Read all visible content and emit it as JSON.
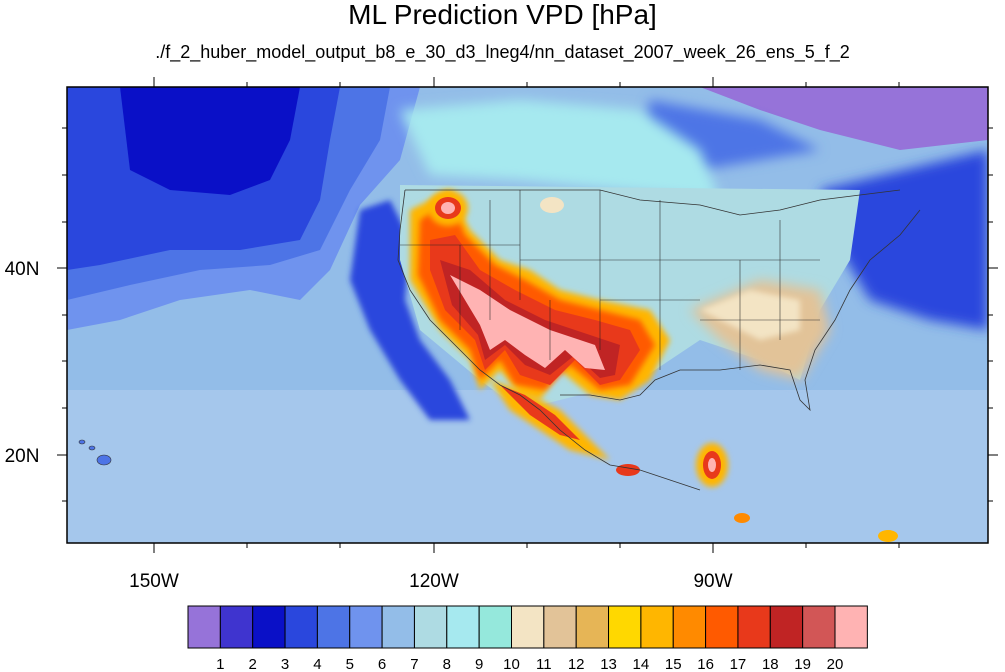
{
  "title": "ML Prediction VPD [hPa]",
  "subtitle": "./f_2_huber_model_output_b8_e_30_d3_lneg4/nn_dataset_2007_week_26_ens_5_f_2",
  "axes": {
    "x_ticks": [
      "150W",
      "120W",
      "90W"
    ],
    "y_ticks": [
      "40N",
      "20N"
    ]
  },
  "colorbar": {
    "labels": [
      "1",
      "2",
      "3",
      "4",
      "5",
      "6",
      "7",
      "8",
      "9",
      "10",
      "11",
      "12",
      "13",
      "14",
      "15",
      "16",
      "17",
      "18",
      "19",
      "20"
    ],
    "colors": [
      "#9673d9",
      "#3f34cf",
      "#0a10c7",
      "#2a47dd",
      "#4d74e6",
      "#6f93ee",
      "#93bde8",
      "#aedbe3",
      "#a6e9ef",
      "#95e8dc",
      "#f3e4c4",
      "#e2c398",
      "#e6b556",
      "#ffd800",
      "#ffb600",
      "#ff8a00",
      "#ff5a00",
      "#e8391b",
      "#c02424",
      "#d25656",
      "#ffb3b3"
    ]
  },
  "map": {
    "region": "North America / Continental US",
    "field": "VPD",
    "units": "hPa"
  }
}
